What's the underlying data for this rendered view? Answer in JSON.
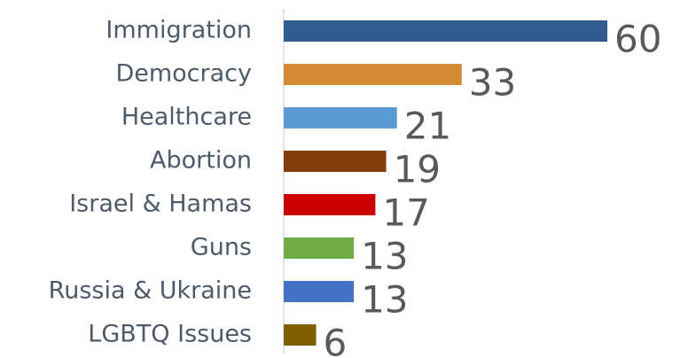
{
  "chart_data": {
    "type": "bar",
    "orientation": "horizontal",
    "categories": [
      "Immigration",
      "Democracy",
      "Healthcare",
      "Abortion",
      "Israel & Hamas",
      "Guns",
      "Russia & Ukraine",
      "LGBTQ Issues"
    ],
    "values": [
      60,
      33,
      21,
      19,
      17,
      13,
      13,
      6
    ],
    "colors": [
      "#2f5b8f",
      "#d38b35",
      "#5b9bd5",
      "#843c0c",
      "#cc0000",
      "#70ad47",
      "#4472c4",
      "#7f6000"
    ]
  }
}
